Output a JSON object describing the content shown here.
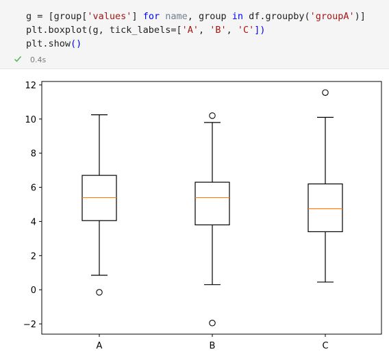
{
  "notebook_cell": {
    "code_lines": [
      [
        {
          "t": "g = [group[",
          "c": ""
        },
        {
          "t": "'values'",
          "c": "str"
        },
        {
          "t": "] ",
          "c": ""
        },
        {
          "t": "for",
          "c": "kw"
        },
        {
          "t": " ",
          "c": ""
        },
        {
          "t": "name",
          "c": "ident"
        },
        {
          "t": ", group ",
          "c": ""
        },
        {
          "t": "in",
          "c": "kw"
        },
        {
          "t": " df.groupby(",
          "c": ""
        },
        {
          "t": "'groupA'",
          "c": "str"
        },
        {
          "t": ")]",
          "c": ""
        }
      ],
      [
        {
          "t": "plt.boxplot(g, tick_labels=[",
          "c": ""
        },
        {
          "t": "'A'",
          "c": "str"
        },
        {
          "t": ", ",
          "c": ""
        },
        {
          "t": "'B'",
          "c": "str"
        },
        {
          "t": ", ",
          "c": ""
        },
        {
          "t": "'C'",
          "c": "str"
        },
        {
          "t": "])",
          "c": "paren"
        }
      ],
      [
        {
          "t": "plt.show",
          "c": ""
        },
        {
          "t": "()",
          "c": "paren"
        }
      ]
    ],
    "exec_time": "0.4s",
    "status_icon": "check-icon",
    "status_color": "#4caf50"
  },
  "chart_data": {
    "type": "boxplot",
    "categories": [
      "A",
      "B",
      "C"
    ],
    "boxes": [
      {
        "label": "A",
        "whislo": 0.85,
        "q1": 4.05,
        "med": 5.4,
        "q3": 6.7,
        "whishi": 10.25,
        "fliers": [
          -0.15
        ]
      },
      {
        "label": "B",
        "whislo": 0.3,
        "q1": 3.8,
        "med": 5.4,
        "q3": 6.3,
        "whishi": 9.8,
        "fliers": [
          10.2,
          -1.95
        ]
      },
      {
        "label": "C",
        "whislo": 0.45,
        "q1": 3.4,
        "med": 4.75,
        "q3": 6.2,
        "whishi": 10.1,
        "fliers": [
          11.55
        ]
      }
    ],
    "ylim": [
      -2.6,
      12.2
    ],
    "yticks": [
      -2,
      0,
      2,
      4,
      6,
      8,
      10,
      12
    ],
    "ytick_labels": [
      "−2",
      "0",
      "2",
      "4",
      "6",
      "8",
      "10",
      "12"
    ],
    "median_color": "#ff7f0e",
    "box_color": "#000000",
    "grid": false,
    "title": "",
    "xlabel": "",
    "ylabel": ""
  }
}
